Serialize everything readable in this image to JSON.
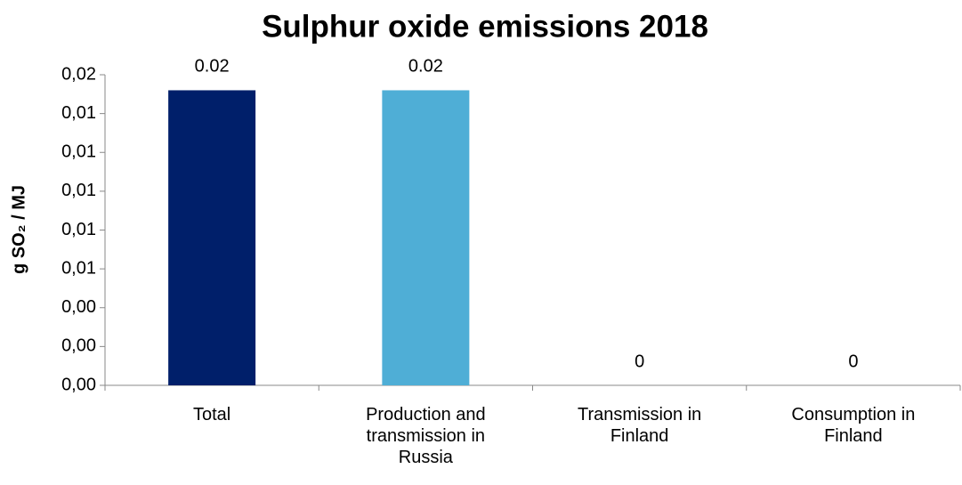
{
  "chart_data": {
    "type": "bar",
    "title": "Sulphur oxide emissions 2018",
    "ylabel": "g SO₂ / MJ",
    "categories": [
      "Total",
      "Production and transmission in Russia",
      "Transmission in Finland",
      "Consumption in Finland"
    ],
    "values": [
      0.0152,
      0.0152,
      0,
      0
    ],
    "value_labels": [
      "0.02",
      "0.02",
      "0",
      "0"
    ],
    "colors": [
      "#001f6a",
      "#4faed6",
      "#4faed6",
      "#4faed6"
    ],
    "ylim": [
      0,
      0.016
    ],
    "yticks": [
      {
        "value": 0,
        "label": "0,00"
      },
      {
        "value": 0.002,
        "label": "0,00"
      },
      {
        "value": 0.004,
        "label": "0,00"
      },
      {
        "value": 0.006,
        "label": "0,01"
      },
      {
        "value": 0.008,
        "label": "0,01"
      },
      {
        "value": 0.01,
        "label": "0,01"
      },
      {
        "value": 0.012,
        "label": "0,01"
      },
      {
        "value": 0.014,
        "label": "0,01"
      },
      {
        "value": 0.016,
        "label": "0,02"
      }
    ],
    "grid": false
  }
}
